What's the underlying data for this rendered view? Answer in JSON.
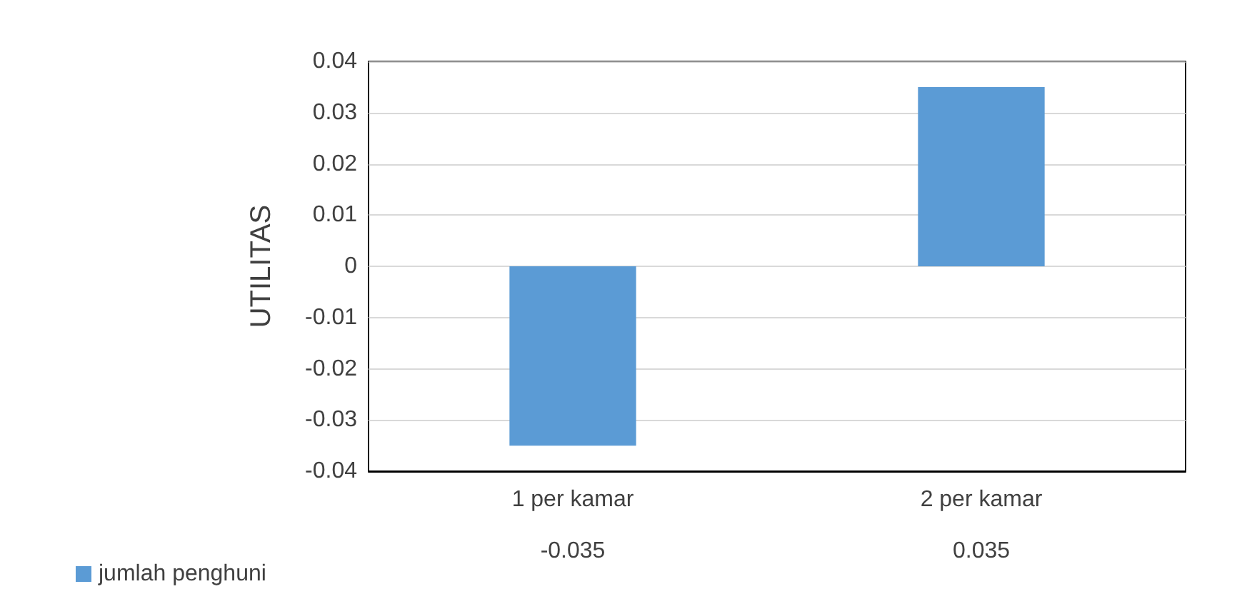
{
  "chart_data": {
    "type": "bar",
    "ylabel": "UTILITAS",
    "categories": [
      "1 per kamar",
      "2 per kamar"
    ],
    "series": [
      {
        "name": "jumlah penghuni",
        "color": "#5b9bd5",
        "values": [
          -0.035,
          0.035
        ]
      }
    ],
    "ylim": [
      -0.04,
      0.04
    ],
    "yticks": [
      -0.04,
      -0.03,
      -0.02,
      -0.01,
      0,
      0.01,
      0.02,
      0.03,
      0.04
    ],
    "grid": "y",
    "legend": "bottom left",
    "data_labels": true
  }
}
